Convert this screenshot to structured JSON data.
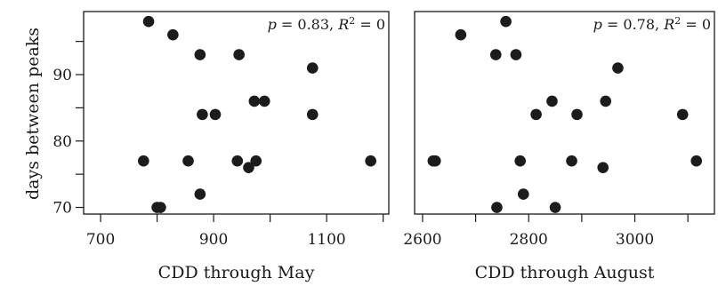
{
  "chart_data": [
    {
      "type": "scatter",
      "xlabel": "CDD through May",
      "ylabel": "days between peaks",
      "xlim": [
        670,
        1210
      ],
      "ylim": [
        69,
        99.5
      ],
      "xticks": [
        700,
        900,
        1100
      ],
      "xticks_minor": [
        800,
        1000,
        1200
      ],
      "yticks": [
        70,
        80,
        90
      ],
      "yticks_minor": [
        75,
        85,
        95
      ],
      "annotation": {
        "p_label": "p",
        "p_text": " = 0.83, ",
        "r_label": "R",
        "r_sup": "2",
        "r_text": " = 0"
      },
      "marker_color": "#1c1c1c",
      "points": [
        {
          "x": 785,
          "y": 98
        },
        {
          "x": 828,
          "y": 96
        },
        {
          "x": 876,
          "y": 93
        },
        {
          "x": 945,
          "y": 93
        },
        {
          "x": 1075,
          "y": 91
        },
        {
          "x": 880,
          "y": 84
        },
        {
          "x": 903,
          "y": 84
        },
        {
          "x": 972,
          "y": 86
        },
        {
          "x": 990,
          "y": 86
        },
        {
          "x": 1075,
          "y": 84
        },
        {
          "x": 776,
          "y": 77
        },
        {
          "x": 855,
          "y": 77
        },
        {
          "x": 942,
          "y": 77
        },
        {
          "x": 975,
          "y": 77
        },
        {
          "x": 1178,
          "y": 77
        },
        {
          "x": 962,
          "y": 76
        },
        {
          "x": 876,
          "y": 72
        },
        {
          "x": 800,
          "y": 70
        },
        {
          "x": 806,
          "y": 70
        }
      ]
    },
    {
      "type": "scatter",
      "xlabel": "CDD through August",
      "ylabel": "",
      "xlim": [
        2585,
        3150
      ],
      "ylim": [
        69,
        99.5
      ],
      "xticks": [
        2600,
        2800,
        3000
      ],
      "xticks_minor": [
        2700,
        2900,
        3100
      ],
      "yticks": [],
      "yticks_minor": [],
      "annotation": {
        "p_label": "p",
        "p_text": " = 0.78, ",
        "r_label": "R",
        "r_sup": "2",
        "r_text": " = 0"
      },
      "marker_color": "#1c1c1c",
      "points": [
        {
          "x": 2757,
          "y": 98
        },
        {
          "x": 2672,
          "y": 96
        },
        {
          "x": 2738,
          "y": 93
        },
        {
          "x": 2776,
          "y": 93
        },
        {
          "x": 2968,
          "y": 91
        },
        {
          "x": 2844,
          "y": 86
        },
        {
          "x": 2945,
          "y": 86
        },
        {
          "x": 2814,
          "y": 84
        },
        {
          "x": 2891,
          "y": 84
        },
        {
          "x": 3090,
          "y": 84
        },
        {
          "x": 2620,
          "y": 77
        },
        {
          "x": 2624,
          "y": 77
        },
        {
          "x": 2784,
          "y": 77
        },
        {
          "x": 2881,
          "y": 77
        },
        {
          "x": 3116,
          "y": 77
        },
        {
          "x": 2940,
          "y": 76
        },
        {
          "x": 2790,
          "y": 72
        },
        {
          "x": 2740,
          "y": 70
        },
        {
          "x": 2850,
          "y": 70
        }
      ]
    }
  ]
}
